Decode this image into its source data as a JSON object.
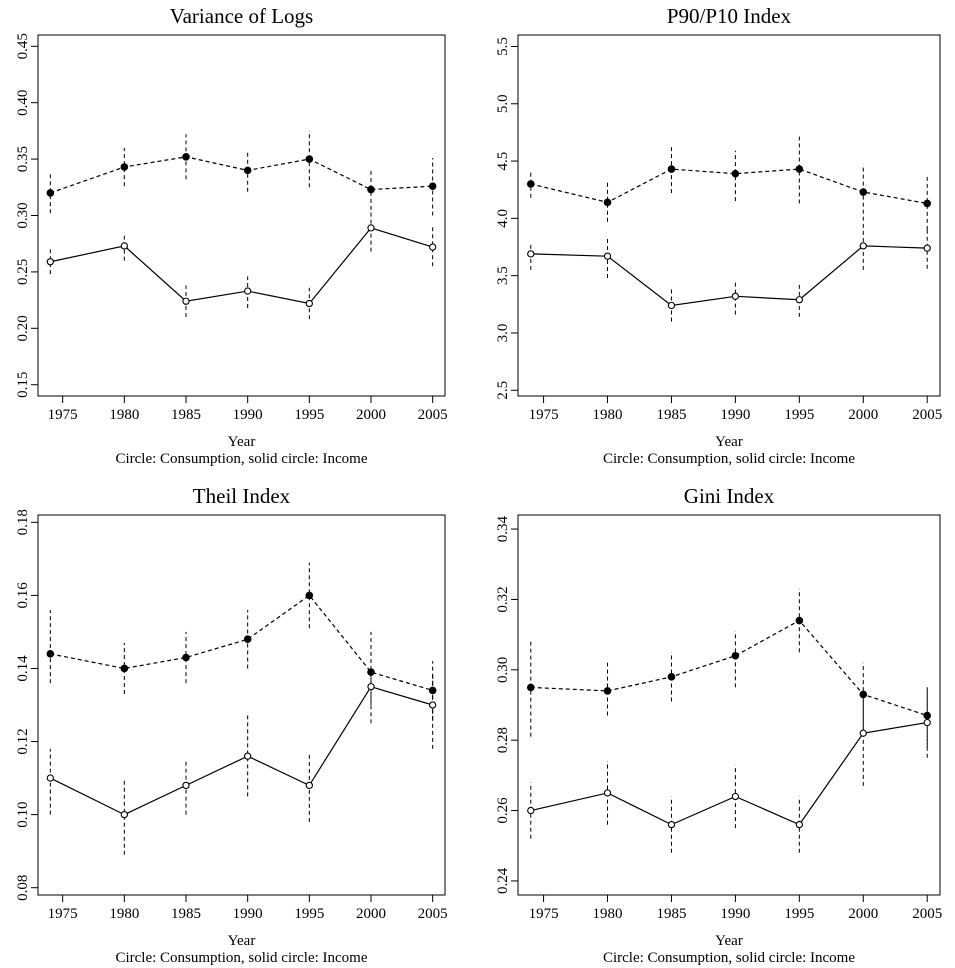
{
  "chart_data": [
    {
      "type": "line",
      "title": "Variance of Logs",
      "xlabel": "Year",
      "caption": "Circle: Consumption, solid circle: Income",
      "xlim": [
        1973,
        2006
      ],
      "ylim": [
        0.14,
        0.46
      ],
      "x": [
        1974,
        1980,
        1985,
        1990,
        1995,
        2000,
        2005
      ],
      "xticks": [
        "1975",
        "1980",
        "1985",
        "1990",
        "1995",
        "2000",
        "2005"
      ],
      "yticks": [
        "0.15",
        "0.20",
        "0.25",
        "0.30",
        "0.35",
        "0.40",
        "0.45"
      ],
      "series": [
        {
          "marker": "solid",
          "line": "dashed",
          "values": [
            0.32,
            0.343,
            0.352,
            0.34,
            0.35,
            0.323,
            0.326
          ],
          "err_low": [
            0.302,
            0.326,
            0.332,
            0.321,
            0.325,
            0.305,
            0.3
          ],
          "err_high": [
            0.338,
            0.36,
            0.372,
            0.356,
            0.375,
            0.34,
            0.351
          ]
        },
        {
          "marker": "open",
          "line": "solid",
          "values": [
            0.259,
            0.273,
            0.224,
            0.233,
            0.222,
            0.289,
            0.272
          ],
          "err_low": [
            0.248,
            0.26,
            0.21,
            0.218,
            0.208,
            0.268,
            0.255
          ],
          "err_high": [
            0.27,
            0.285,
            0.238,
            0.246,
            0.236,
            0.308,
            0.29
          ]
        }
      ]
    },
    {
      "type": "line",
      "title": "P90/P10 Index",
      "xlabel": "Year",
      "caption": "Circle: Consumption, solid circle: Income",
      "xlim": [
        1973,
        2006
      ],
      "ylim": [
        2.45,
        5.6
      ],
      "x": [
        1974,
        1980,
        1985,
        1990,
        1995,
        2000,
        2005
      ],
      "xticks": [
        "1975",
        "1980",
        "1985",
        "1990",
        "1995",
        "2000",
        "2005"
      ],
      "yticks": [
        "2.5",
        "3.0",
        "3.5",
        "4.0",
        "4.5",
        "5.0",
        "5.5"
      ],
      "series": [
        {
          "marker": "solid",
          "line": "dashed",
          "values": [
            4.3,
            4.14,
            4.43,
            4.39,
            4.43,
            4.23,
            4.13
          ],
          "err_low": [
            4.18,
            3.97,
            4.22,
            4.15,
            4.13,
            3.98,
            3.9
          ],
          "err_high": [
            4.42,
            4.33,
            4.64,
            4.59,
            4.74,
            4.47,
            4.37
          ]
        },
        {
          "marker": "open",
          "line": "solid",
          "values": [
            3.69,
            3.67,
            3.24,
            3.32,
            3.29,
            3.76,
            3.74
          ],
          "err_low": [
            3.55,
            3.48,
            3.1,
            3.16,
            3.14,
            3.55,
            3.56
          ],
          "err_high": [
            3.79,
            3.84,
            3.39,
            3.46,
            3.42,
            3.96,
            3.91
          ]
        }
      ]
    },
    {
      "type": "line",
      "title": "Theil Index",
      "xlabel": "Year",
      "caption": "Circle: Consumption, solid circle: Income",
      "xlim": [
        1973,
        2006
      ],
      "ylim": [
        0.078,
        0.182
      ],
      "x": [
        1974,
        1980,
        1985,
        1990,
        1995,
        2000,
        2005
      ],
      "xticks": [
        "1975",
        "1980",
        "1985",
        "1990",
        "1995",
        "2000",
        "2005"
      ],
      "yticks": [
        "0.08",
        "0.10",
        "0.12",
        "0.14",
        "0.16",
        "0.18"
      ],
      "series": [
        {
          "marker": "solid",
          "line": "dashed",
          "values": [
            0.144,
            0.14,
            0.143,
            0.148,
            0.16,
            0.139,
            0.134
          ],
          "err_low": [
            0.136,
            0.133,
            0.136,
            0.14,
            0.151,
            0.13,
            0.126
          ],
          "err_high": [
            0.156,
            0.147,
            0.15,
            0.156,
            0.169,
            0.15,
            0.142
          ]
        },
        {
          "marker": "open",
          "line": "solid",
          "values": [
            0.11,
            0.1,
            0.108,
            0.116,
            0.108,
            0.135,
            0.13
          ],
          "err_low": [
            0.1,
            0.089,
            0.1,
            0.105,
            0.098,
            0.125,
            0.118
          ],
          "err_high": [
            0.118,
            0.11,
            0.115,
            0.128,
            0.117,
            0.14,
            0.139
          ]
        }
      ]
    },
    {
      "type": "line",
      "title": "Gini Index",
      "xlabel": "Year",
      "caption": "Circle: Consumption, solid circle: Income",
      "xlim": [
        1973,
        2006
      ],
      "ylim": [
        0.236,
        0.344
      ],
      "x": [
        1974,
        1980,
        1985,
        1990,
        1995,
        2000,
        2005
      ],
      "xticks": [
        "1975",
        "1980",
        "1985",
        "1990",
        "1995",
        "2000",
        "2005"
      ],
      "yticks": [
        "0.24",
        "0.26",
        "0.28",
        "0.30",
        "0.32",
        "0.34"
      ],
      "series": [
        {
          "marker": "solid",
          "line": "dashed",
          "values": [
            0.295,
            0.294,
            0.298,
            0.304,
            0.314,
            0.293,
            0.287
          ],
          "err_low": [
            0.281,
            0.287,
            0.291,
            0.295,
            0.305,
            0.284,
            0.278
          ],
          "err_high": [
            0.308,
            0.302,
            0.305,
            0.311,
            0.323,
            0.302,
            0.295
          ]
        },
        {
          "marker": "open",
          "line": "solid",
          "values": [
            0.26,
            0.265,
            0.256,
            0.264,
            0.256,
            0.282,
            0.285
          ],
          "err_low": [
            0.252,
            0.256,
            0.248,
            0.255,
            0.248,
            0.267,
            0.275
          ],
          "err_high": [
            0.268,
            0.274,
            0.264,
            0.273,
            0.264,
            0.292,
            0.295
          ]
        }
      ]
    }
  ]
}
